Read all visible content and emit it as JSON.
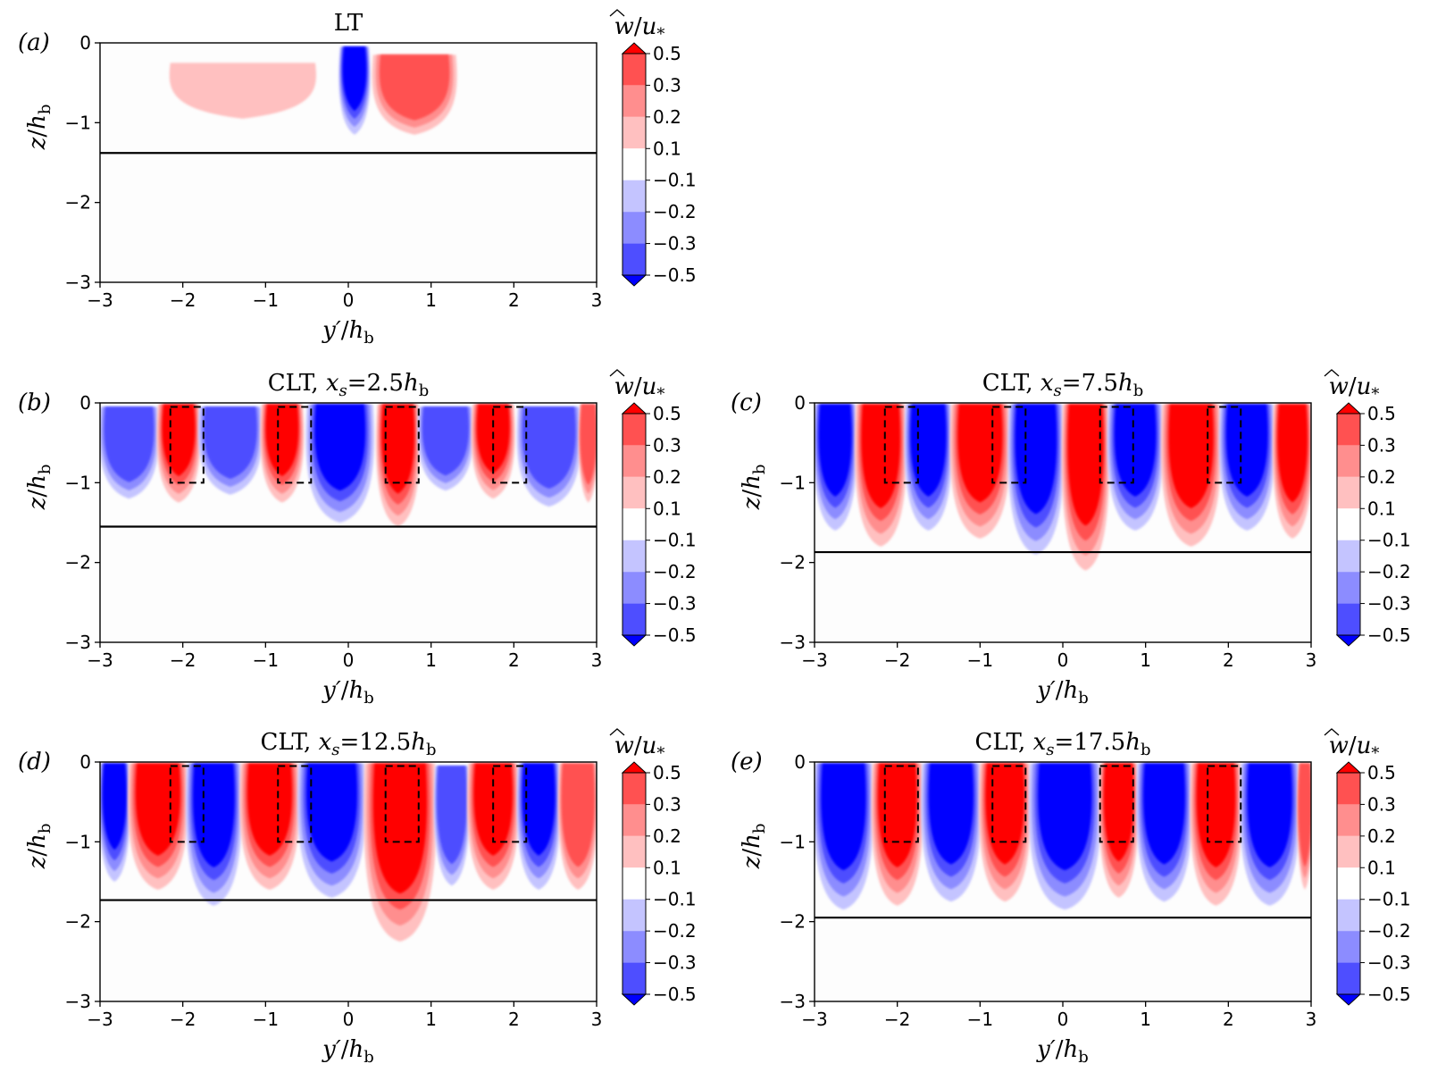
{
  "colorbar": {
    "label_hat": "w",
    "label_rest": "/u",
    "label_sub": "*",
    "levels": [
      0.5,
      0.3,
      0.2,
      0.1,
      -0.1,
      -0.2,
      -0.3,
      -0.5
    ],
    "level_labels": [
      "0.5",
      "0.3",
      "0.2",
      "0.1",
      "−0.1",
      "−0.2",
      "−0.3",
      "−0.5"
    ],
    "colors": [
      "#ff0000",
      "#ff5151",
      "#ff8e8e",
      "#ffc0c0",
      "#ffffff",
      "#c4c4ff",
      "#8c8cff",
      "#4e4eff",
      "#0000ff"
    ]
  },
  "axes_text": {
    "xlabel_main": "y′",
    "xlabel_rest": "/h",
    "xlabel_sub": "b",
    "ylabel_main": "z",
    "ylabel_rest": "/h",
    "ylabel_sub": "b",
    "xticks": [
      "−3",
      "−2",
      "−1",
      "0",
      "1",
      "2",
      "3"
    ],
    "yticks": [
      "0",
      "−1",
      "−2",
      "−3"
    ]
  },
  "chart_data": [
    {
      "type": "heatmap",
      "panel": "(a)",
      "title": "LT",
      "title_math": "",
      "title_sub": "",
      "xlim": [
        -3,
        3
      ],
      "ylim": [
        -3,
        0
      ],
      "boundary_layer_depth": -1.38,
      "dashed_boxes": [],
      "blobs": [
        {
          "y0": -0.1,
          "y1": 0.25,
          "z_top": -0.05,
          "z_bot": -1.15,
          "value": -0.55
        },
        {
          "y0": 0.3,
          "y1": 1.3,
          "z_top": -0.15,
          "z_bot": -1.15,
          "value": 0.4
        },
        {
          "y0": -2.15,
          "y1": -0.4,
          "z_top": -0.25,
          "z_bot": -0.95,
          "value": 0.13
        }
      ]
    },
    {
      "type": "heatmap",
      "panel": "(b)",
      "title": "CLT,",
      "title_math": "x",
      "title_sub": "s",
      "title_rest": "=2.5h",
      "title_rest_sub": "b",
      "xlim": [
        -3,
        3
      ],
      "ylim": [
        -3,
        0
      ],
      "boundary_layer_depth": -1.55,
      "dashed_boxes": [
        [
          -2.15,
          -1.75
        ],
        [
          -0.85,
          -0.45
        ],
        [
          0.45,
          0.85
        ],
        [
          1.75,
          2.15
        ]
      ],
      "blobs": [
        {
          "y0": -3.0,
          "y1": -2.3,
          "z_top": -0.05,
          "z_bot": -1.2,
          "value": -0.45
        },
        {
          "y0": -2.3,
          "y1": -1.8,
          "z_top": -0.02,
          "z_bot": -1.25,
          "value": 0.55
        },
        {
          "y0": -1.8,
          "y1": -1.05,
          "z_top": -0.05,
          "z_bot": -1.15,
          "value": -0.35
        },
        {
          "y0": -1.05,
          "y1": -0.55,
          "z_top": -0.02,
          "z_bot": -1.25,
          "value": 0.55
        },
        {
          "y0": -0.5,
          "y1": 0.3,
          "z_top": -0.02,
          "z_bot": -1.5,
          "value": -0.6
        },
        {
          "y0": 0.35,
          "y1": 0.85,
          "z_top": -0.02,
          "z_bot": -1.55,
          "value": 0.55
        },
        {
          "y0": 0.85,
          "y1": 1.5,
          "z_top": -0.05,
          "z_bot": -1.1,
          "value": -0.35
        },
        {
          "y0": 1.5,
          "y1": 2.0,
          "z_top": -0.02,
          "z_bot": -1.2,
          "value": 0.55
        },
        {
          "y0": 2.05,
          "y1": 2.8,
          "z_top": -0.05,
          "z_bot": -1.3,
          "value": -0.45
        },
        {
          "y0": 2.8,
          "y1": 3.0,
          "z_top": -0.02,
          "z_bot": -1.25,
          "value": 0.45
        }
      ]
    },
    {
      "type": "heatmap",
      "panel": "(c)",
      "title": "CLT,",
      "title_math": "x",
      "title_sub": "s",
      "title_rest": "=7.5h",
      "title_rest_sub": "b",
      "xlim": [
        -3,
        3
      ],
      "ylim": [
        -3,
        0
      ],
      "boundary_layer_depth": -1.87,
      "dashed_boxes": [
        [
          -2.15,
          -1.75
        ],
        [
          -0.85,
          -0.45
        ],
        [
          0.45,
          0.85
        ],
        [
          1.75,
          2.15
        ]
      ],
      "blobs": [
        {
          "y0": -3.0,
          "y1": -2.5,
          "z_top": -0.02,
          "z_bot": -1.6,
          "value": -0.55
        },
        {
          "y0": -2.5,
          "y1": -1.9,
          "z_top": -0.02,
          "z_bot": -1.8,
          "value": 0.55
        },
        {
          "y0": -1.9,
          "y1": -1.35,
          "z_top": -0.02,
          "z_bot": -1.6,
          "value": -0.55
        },
        {
          "y0": -1.35,
          "y1": -0.65,
          "z_top": -0.02,
          "z_bot": -1.7,
          "value": 0.55
        },
        {
          "y0": -0.65,
          "y1": 0.0,
          "z_top": -0.02,
          "z_bot": -1.9,
          "value": -0.55
        },
        {
          "y0": 0.0,
          "y1": 0.55,
          "z_top": -0.02,
          "z_bot": -2.1,
          "value": 0.55
        },
        {
          "y0": 0.55,
          "y1": 1.2,
          "z_top": -0.02,
          "z_bot": -1.6,
          "value": -0.55
        },
        {
          "y0": 1.2,
          "y1": 1.9,
          "z_top": -0.02,
          "z_bot": -1.8,
          "value": 0.55
        },
        {
          "y0": 1.9,
          "y1": 2.55,
          "z_top": -0.02,
          "z_bot": -1.6,
          "value": -0.55
        },
        {
          "y0": 2.55,
          "y1": 3.0,
          "z_top": -0.02,
          "z_bot": -1.7,
          "value": 0.55
        }
      ]
    },
    {
      "type": "heatmap",
      "panel": "(d)",
      "title": "CLT,",
      "title_math": "x",
      "title_sub": "s",
      "title_rest": "=12.5h",
      "title_rest_sub": "b",
      "xlim": [
        -3,
        3
      ],
      "ylim": [
        -3,
        0
      ],
      "boundary_layer_depth": -1.73,
      "dashed_boxes": [
        [
          -2.15,
          -1.75
        ],
        [
          -0.85,
          -0.45
        ],
        [
          0.45,
          0.85
        ],
        [
          1.75,
          2.15
        ]
      ],
      "blobs": [
        {
          "y0": -3.0,
          "y1": -2.65,
          "z_top": -0.02,
          "z_bot": -1.5,
          "value": -0.5
        },
        {
          "y0": -2.65,
          "y1": -1.95,
          "z_top": -0.02,
          "z_bot": -1.6,
          "value": 0.5
        },
        {
          "y0": -1.95,
          "y1": -1.3,
          "z_top": -0.02,
          "z_bot": -1.8,
          "value": -0.55
        },
        {
          "y0": -1.3,
          "y1": -0.6,
          "z_top": -0.02,
          "z_bot": -1.6,
          "value": 0.5
        },
        {
          "y0": -0.6,
          "y1": 0.2,
          "z_top": -0.02,
          "z_bot": -1.7,
          "value": -0.6
        },
        {
          "y0": 0.2,
          "y1": 1.05,
          "z_top": -0.02,
          "z_bot": -2.25,
          "value": 0.55
        },
        {
          "y0": 1.05,
          "y1": 1.45,
          "z_top": -0.05,
          "z_bot": -1.55,
          "value": -0.35
        },
        {
          "y0": 1.45,
          "y1": 2.05,
          "z_top": -0.02,
          "z_bot": -1.6,
          "value": 0.5
        },
        {
          "y0": 2.05,
          "y1": 2.55,
          "z_top": -0.02,
          "z_bot": -1.6,
          "value": -0.5
        },
        {
          "y0": 2.55,
          "y1": 3.0,
          "z_top": -0.02,
          "z_bot": -1.6,
          "value": 0.45
        }
      ]
    },
    {
      "type": "heatmap",
      "panel": "(e)",
      "title": "CLT,",
      "title_math": "x",
      "title_sub": "s",
      "title_rest": "=17.5h",
      "title_rest_sub": "b",
      "xlim": [
        -3,
        3
      ],
      "ylim": [
        -3,
        0
      ],
      "boundary_layer_depth": -1.95,
      "dashed_boxes": [
        [
          -2.15,
          -1.75
        ],
        [
          -0.85,
          -0.45
        ],
        [
          0.45,
          0.85
        ],
        [
          1.75,
          2.15
        ]
      ],
      "blobs": [
        {
          "y0": -3.0,
          "y1": -2.3,
          "z_top": -0.02,
          "z_bot": -1.85,
          "value": -0.55
        },
        {
          "y0": -2.3,
          "y1": -1.7,
          "z_top": -0.02,
          "z_bot": -1.8,
          "value": 0.55
        },
        {
          "y0": -1.7,
          "y1": -1.0,
          "z_top": -0.02,
          "z_bot": -1.75,
          "value": -0.55
        },
        {
          "y0": -1.0,
          "y1": -0.4,
          "z_top": -0.02,
          "z_bot": -1.75,
          "value": 0.55
        },
        {
          "y0": -0.4,
          "y1": 0.45,
          "z_top": -0.02,
          "z_bot": -1.85,
          "value": -0.6
        },
        {
          "y0": 0.45,
          "y1": 0.9,
          "z_top": -0.02,
          "z_bot": -1.7,
          "value": 0.55
        },
        {
          "y0": 0.9,
          "y1": 1.55,
          "z_top": -0.02,
          "z_bot": -1.75,
          "value": -0.55
        },
        {
          "y0": 1.55,
          "y1": 2.15,
          "z_top": -0.02,
          "z_bot": -1.8,
          "value": 0.55
        },
        {
          "y0": 2.15,
          "y1": 2.85,
          "z_top": -0.02,
          "z_bot": -1.8,
          "value": -0.55
        },
        {
          "y0": 2.85,
          "y1": 3.0,
          "z_top": -0.02,
          "z_bot": -1.6,
          "value": 0.45
        }
      ]
    }
  ]
}
